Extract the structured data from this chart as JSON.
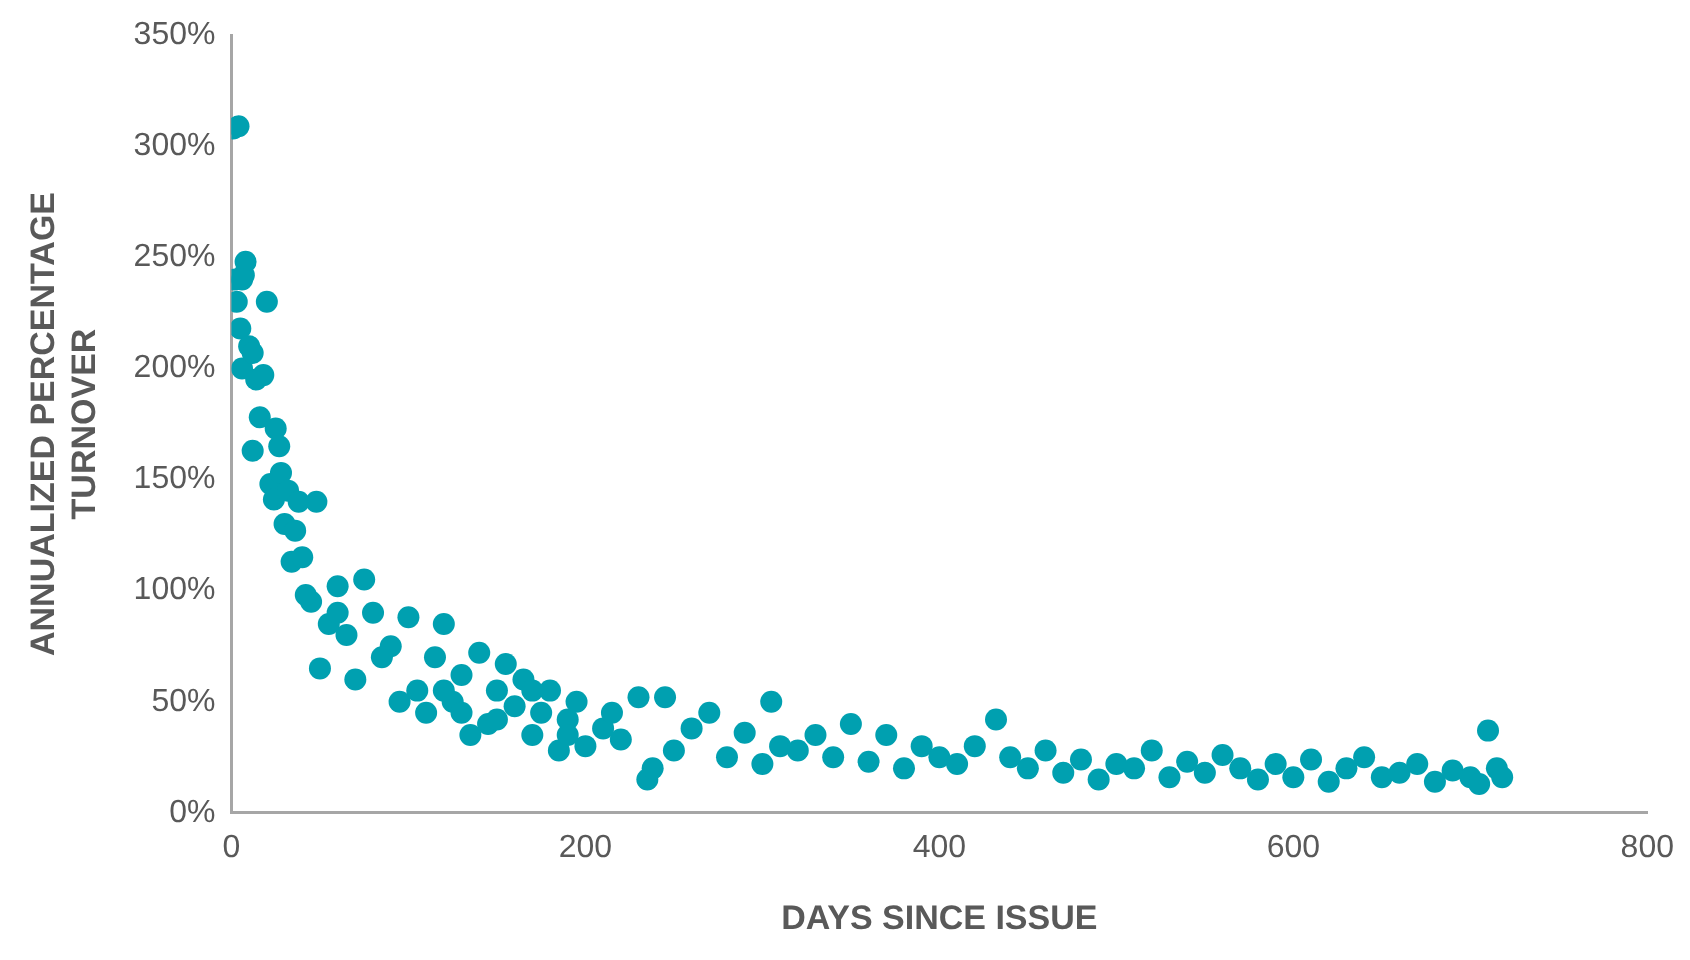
{
  "chart_data": {
    "type": "scatter",
    "xlabel": "DAYS SINCE ISSUE",
    "ylabel": "ANNUALIZED PERCENTAGE TURNOVER",
    "xlim": [
      0,
      800
    ],
    "xticks": [
      0,
      200,
      400,
      600,
      800
    ],
    "ylim": [
      0,
      350
    ],
    "yticks": [
      {
        "value": 0,
        "label": "0%"
      },
      {
        "value": 50,
        "label": "50%"
      },
      {
        "value": 100,
        "label": "100%"
      },
      {
        "value": 150,
        "label": "150%"
      },
      {
        "value": 200,
        "label": "200%"
      },
      {
        "value": 250,
        "label": "250%"
      },
      {
        "value": 300,
        "label": "300%"
      },
      {
        "value": 350,
        "label": "350%"
      }
    ],
    "grid": false,
    "legend": false,
    "marker": "circle",
    "series": [
      {
        "color": "#00a0b0",
        "x": [
          1,
          4,
          2,
          3,
          5,
          6,
          7,
          8,
          6,
          10,
          12,
          14,
          16,
          18,
          20,
          12,
          22,
          24,
          25,
          27,
          28,
          30,
          32,
          34,
          36,
          38,
          40,
          45,
          42,
          48,
          50,
          55,
          60,
          65,
          70,
          75,
          80,
          90,
          100,
          105,
          110,
          115,
          120,
          125,
          130,
          135,
          140,
          145,
          150,
          155,
          160,
          165,
          170,
          175,
          180,
          185,
          190,
          195,
          200,
          210,
          215,
          220,
          230,
          235,
          238,
          245,
          250,
          260,
          270,
          280,
          290,
          300,
          305,
          310,
          320,
          330,
          340,
          350,
          360,
          370,
          380,
          390,
          400,
          410,
          420,
          432,
          440,
          450,
          460,
          470,
          480,
          490,
          500,
          510,
          520,
          530,
          540,
          550,
          560,
          570,
          580,
          590,
          600,
          610,
          620,
          630,
          640,
          650,
          660,
          670,
          680,
          690,
          700,
          705,
          710,
          715,
          718,
          60,
          85,
          95,
          130,
          150,
          170,
          190,
          120
        ],
        "values": [
          308,
          309,
          240,
          230,
          218,
          200,
          242,
          248,
          240,
          210,
          207,
          195,
          178,
          197,
          230,
          163,
          148,
          141,
          173,
          165,
          153,
          130,
          145,
          113,
          127,
          140,
          115,
          95,
          98,
          140,
          65,
          85,
          102,
          80,
          60,
          105,
          90,
          75,
          88,
          55,
          45,
          70,
          85,
          50,
          62,
          35,
          72,
          40,
          55,
          67,
          48,
          60,
          35,
          45,
          55,
          28,
          42,
          50,
          30,
          38,
          45,
          33,
          52,
          15,
          20,
          52,
          28,
          38,
          45,
          25,
          36,
          22,
          50,
          30,
          28,
          35,
          25,
          40,
          23,
          35,
          20,
          30,
          25,
          22,
          30,
          42,
          25,
          20,
          28,
          18,
          24,
          15,
          22,
          20,
          28,
          16,
          23,
          18,
          26,
          20,
          15,
          22,
          16,
          24,
          14,
          20,
          25,
          16,
          18,
          22,
          14,
          19,
          16,
          13,
          37,
          20,
          16,
          90,
          70,
          50,
          45,
          42,
          55,
          35,
          55
        ]
      }
    ]
  }
}
